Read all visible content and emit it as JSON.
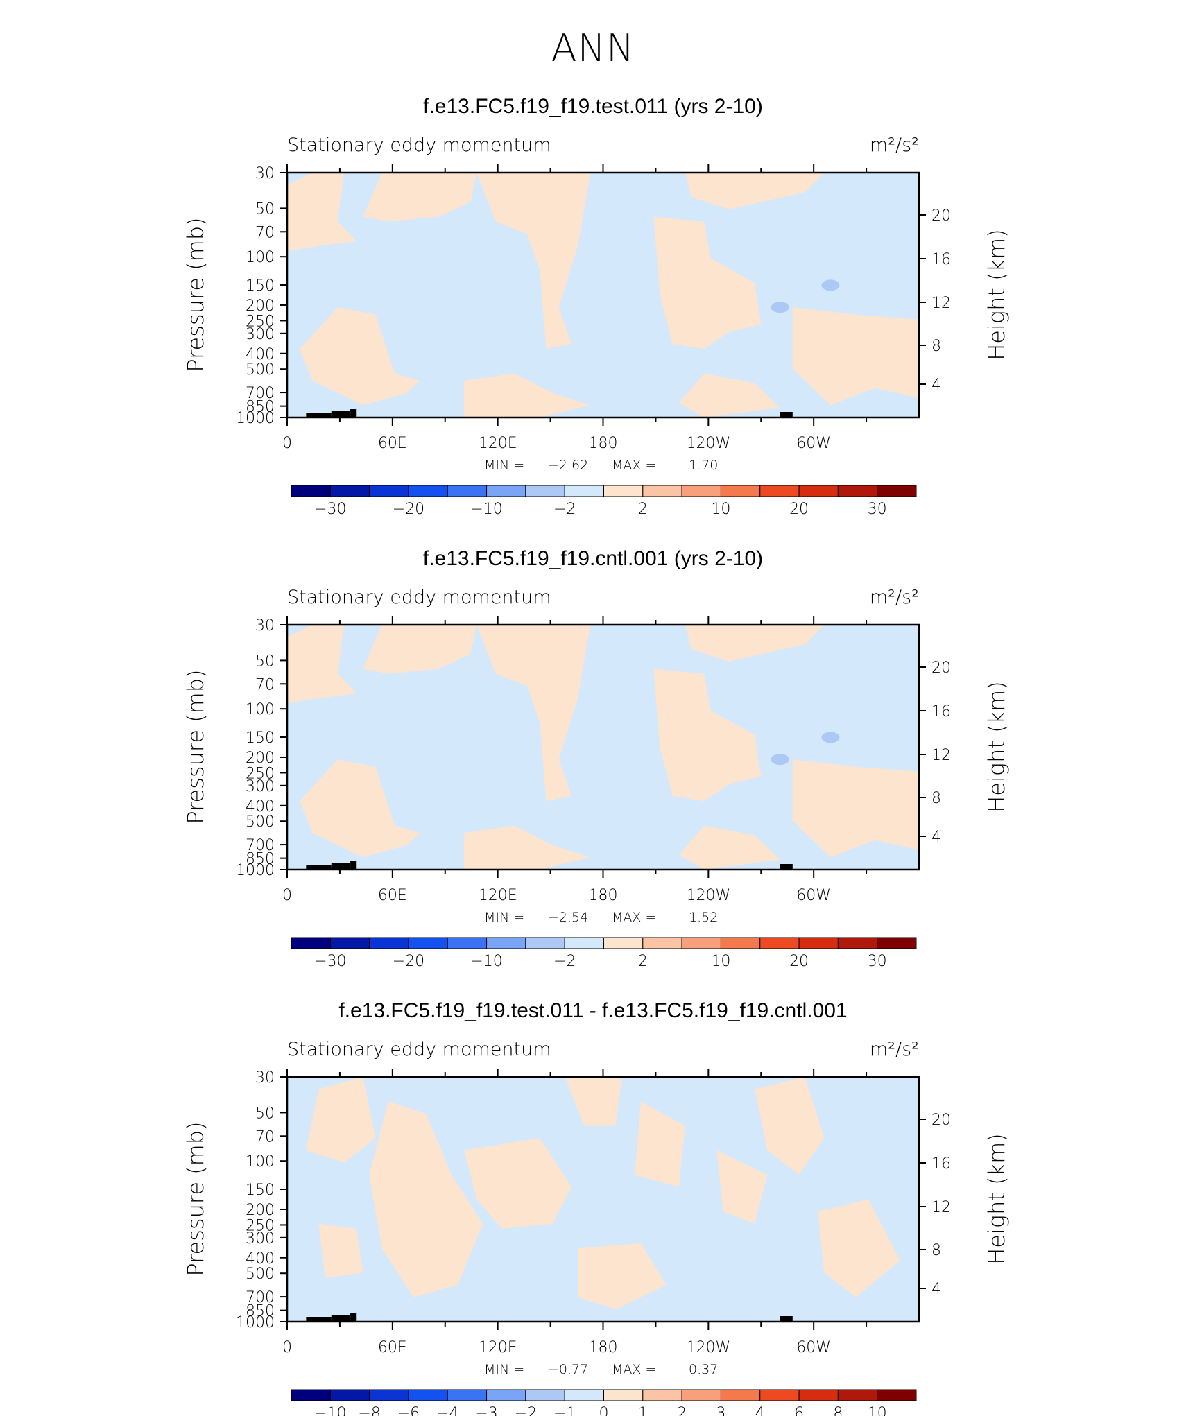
{
  "figure": {
    "title": "ANN"
  },
  "colors": {
    "cold": "#d4e8fc",
    "warm": "#fde4cf",
    "cold2": "#acc8f4",
    "frame": "#000000"
  },
  "chart_data": [
    {
      "type": "heatmap",
      "title": "f.e13.FC5.f19_f19.test.011 (yrs 2-10)",
      "left_title": "Stationary eddy momentum",
      "units": "m²/s²",
      "ylabel": "Pressure (mb)",
      "ylabel_right": "Height (km)",
      "x_ticks": [
        "0",
        "60E",
        "120E",
        "180",
        "120W",
        "60W"
      ],
      "y_ticks": [
        "30",
        "50",
        "70",
        "100",
        "150",
        "200",
        "250",
        "300",
        "400",
        "500",
        "700",
        "850",
        "1000"
      ],
      "y_right_ticks": [
        "20",
        "16",
        "12",
        "8",
        "4"
      ],
      "stats": {
        "min_label": "MIN =",
        "min": "−2.62",
        "max_label": "MAX =",
        "max": "1.70"
      },
      "colorbar_labels": [
        "−30",
        "−20",
        "−10",
        "−2",
        "2",
        "10",
        "20",
        "30"
      ]
    },
    {
      "type": "heatmap",
      "title": "f.e13.FC5.f19_f19.cntl.001 (yrs 2-10)",
      "left_title": "Stationary eddy momentum",
      "units": "m²/s²",
      "ylabel": "Pressure (mb)",
      "ylabel_right": "Height (km)",
      "x_ticks": [
        "0",
        "60E",
        "120E",
        "180",
        "120W",
        "60W"
      ],
      "y_ticks": [
        "30",
        "50",
        "70",
        "100",
        "150",
        "200",
        "250",
        "300",
        "400",
        "500",
        "700",
        "850",
        "1000"
      ],
      "y_right_ticks": [
        "20",
        "16",
        "12",
        "8",
        "4"
      ],
      "stats": {
        "min_label": "MIN =",
        "min": "−2.54",
        "max_label": "MAX =",
        "max": "1.52"
      },
      "colorbar_labels": [
        "−30",
        "−20",
        "−10",
        "−2",
        "2",
        "10",
        "20",
        "30"
      ]
    },
    {
      "type": "heatmap",
      "title": "f.e13.FC5.f19_f19.test.011 - f.e13.FC5.f19_f19.cntl.001",
      "left_title": "Stationary eddy momentum",
      "units": "m²/s²",
      "ylabel": "Pressure (mb)",
      "ylabel_right": "Height (km)",
      "x_ticks": [
        "0",
        "60E",
        "120E",
        "180",
        "120W",
        "60W"
      ],
      "y_ticks": [
        "30",
        "50",
        "70",
        "100",
        "150",
        "200",
        "250",
        "300",
        "400",
        "500",
        "700",
        "850",
        "1000"
      ],
      "y_right_ticks": [
        "20",
        "16",
        "12",
        "8",
        "4"
      ],
      "stats": {
        "min_label": "MIN =",
        "min": "−0.77",
        "max_label": "MAX =",
        "max": "0.37"
      },
      "colorbar_labels": [
        "−10",
        "−8",
        "−6",
        "−4",
        "−3",
        "−2",
        "−1",
        "0",
        "1",
        "2",
        "3",
        "4",
        "6",
        "8",
        "10"
      ]
    }
  ],
  "colorbar_colors": {
    "abs": [
      "#00007f",
      "#0418a8",
      "#0a34d4",
      "#1452f0",
      "#3a74f4",
      "#7aa4f6",
      "#aec8f6",
      "#d4e8fc",
      "#fde4cf",
      "#fbc4a4",
      "#f8a07c",
      "#f47a4e",
      "#ee4a22",
      "#d62c10",
      "#b0180c",
      "#7f0000"
    ],
    "diff": [
      "#00007f",
      "#0418a8",
      "#0a34d4",
      "#1452f0",
      "#3a74f4",
      "#7aa4f6",
      "#aec8f6",
      "#d4e8fc",
      "#fde4cf",
      "#fbc4a4",
      "#f8a07c",
      "#f47a4e",
      "#ee4a22",
      "#d62c10",
      "#b0180c",
      "#7f0000"
    ]
  }
}
